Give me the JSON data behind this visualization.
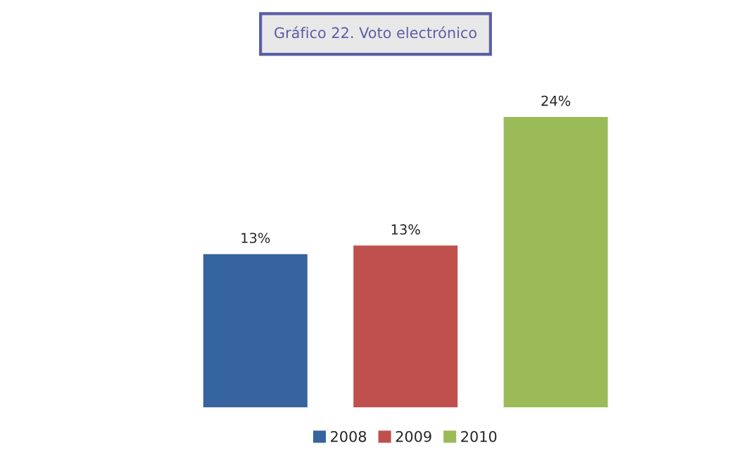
{
  "chart_data": {
    "type": "bar",
    "title": "Gráfico 22. Voto electrónico",
    "categories": [
      null
    ],
    "series": [
      {
        "name": "2008",
        "color": "#35649e",
        "values": [
          12.7
        ],
        "value_labels": [
          "13%"
        ]
      },
      {
        "name": "2009",
        "color": "#c0504d",
        "values": [
          13.4
        ],
        "value_labels": [
          "13%"
        ]
      },
      {
        "name": "2010",
        "color": "#9bbb59",
        "values": [
          24
        ],
        "value_labels": [
          "24%"
        ]
      }
    ],
    "legend": "bottom"
  }
}
